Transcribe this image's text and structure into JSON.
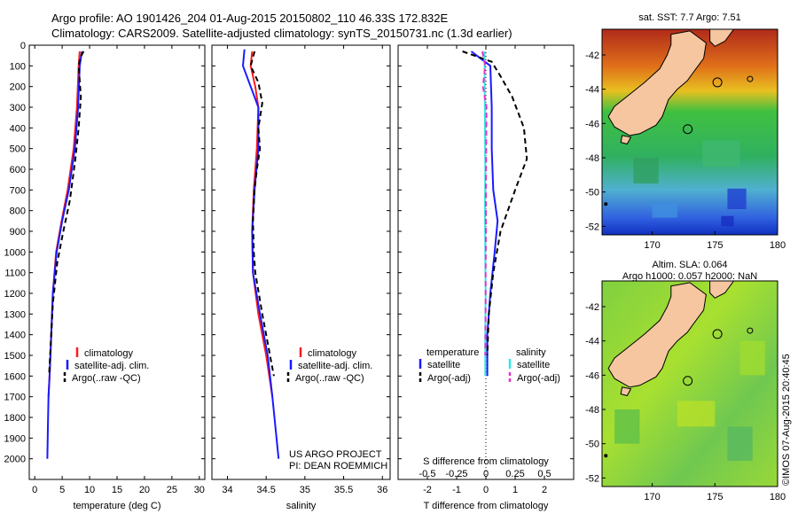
{
  "header": {
    "line1": "Argo profile: AO 1901426_204 01-Aug-2015 20150802_110 46.33S 172.832E",
    "line2": "Climatology: CARS2009. Satellite-adjusted climatology: synTS_20150731.nc (1.3d earlier)"
  },
  "credits": {
    "project": "US ARGO PROJECT",
    "pi": "PI: DEAN ROEMMICH",
    "side": "©IMOS 07-Aug-2015 20:40:45"
  },
  "colors": {
    "climatology": "#ff1a1a",
    "satellite": "#1a1aff",
    "argo": "#000000",
    "sal_satellite": "#33e6e6",
    "sal_argo": "#e633cc"
  },
  "chart_data": [
    {
      "type": "line",
      "xlabel": "temperature (deg C)",
      "ylabel": "",
      "xlim": [
        -1,
        31
      ],
      "ylim": [
        2100,
        0
      ],
      "xticks": [
        "0",
        "5",
        "10",
        "15",
        "20",
        "25",
        "30"
      ],
      "yticks": [
        "0",
        "100",
        "200",
        "300",
        "400",
        "500",
        "600",
        "700",
        "800",
        "900",
        "1000",
        "1100",
        "1200",
        "1300",
        "1400",
        "1500",
        "1600",
        "1700",
        "1800",
        "1900",
        "2000"
      ],
      "legend": {
        "position": "lower-right",
        "entries": [
          "climatology",
          "satellite-adj. clim.",
          "Argo(..raw -QC)"
        ]
      },
      "series": [
        {
          "name": "climatology",
          "color": "climatology",
          "dash": "",
          "points": [
            [
              8.2,
              30
            ],
            [
              8.0,
              100
            ],
            [
              7.7,
              300
            ],
            [
              7.1,
              500
            ],
            [
              6.0,
              700
            ],
            [
              4.9,
              850
            ],
            [
              3.9,
              1000
            ],
            [
              3.3,
              1200
            ],
            [
              3.0,
              1400
            ],
            [
              2.7,
              1600
            ],
            [
              2.5,
              1700
            ]
          ]
        },
        {
          "name": "satellite-adj. clim.",
          "color": "satellite",
          "dash": "",
          "points": [
            [
              8.6,
              30
            ],
            [
              8.2,
              100
            ],
            [
              7.9,
              300
            ],
            [
              7.3,
              500
            ],
            [
              6.2,
              700
            ],
            [
              5.0,
              850
            ],
            [
              4.0,
              1000
            ],
            [
              3.3,
              1200
            ],
            [
              3.0,
              1400
            ],
            [
              2.7,
              1600
            ],
            [
              2.5,
              1700
            ],
            [
              2.4,
              1850
            ],
            [
              2.3,
              2000
            ]
          ]
        },
        {
          "name": "Argo(..raw -QC)",
          "color": "argo",
          "dash": "6,4",
          "points": [
            [
              8.9,
              30
            ],
            [
              8.3,
              60
            ],
            [
              8.0,
              100
            ],
            [
              8.4,
              250
            ],
            [
              8.0,
              400
            ],
            [
              7.4,
              550
            ],
            [
              6.4,
              750
            ],
            [
              5.2,
              900
            ],
            [
              4.1,
              1050
            ],
            [
              3.3,
              1250
            ],
            [
              3.0,
              1400
            ],
            [
              2.6,
              1600
            ]
          ]
        }
      ]
    },
    {
      "type": "line",
      "xlabel": "salinity",
      "ylabel": "",
      "xlim": [
        33.8,
        36.1
      ],
      "ylim": [
        2100,
        0
      ],
      "xticks": [
        "34",
        "34.5",
        "35",
        "35.5",
        "36"
      ],
      "legend": {
        "position": "lower-right",
        "entries": [
          "climatology",
          "satellite-adj. clim.",
          "Argo(..raw -QC)"
        ]
      },
      "series": [
        {
          "name": "climatology",
          "color": "climatology",
          "dash": "",
          "points": [
            [
              34.32,
              30
            ],
            [
              34.3,
              100
            ],
            [
              34.36,
              200
            ],
            [
              34.4,
              300
            ],
            [
              34.38,
              500
            ],
            [
              34.34,
              700
            ],
            [
              34.32,
              900
            ],
            [
              34.33,
              1100
            ],
            [
              34.4,
              1300
            ],
            [
              34.5,
              1500
            ],
            [
              34.58,
              1700
            ]
          ]
        },
        {
          "name": "satellite-adj. clim.",
          "color": "satellite",
          "dash": "",
          "points": [
            [
              34.22,
              20
            ],
            [
              34.2,
              100
            ],
            [
              34.3,
              200
            ],
            [
              34.4,
              300
            ],
            [
              34.4,
              500
            ],
            [
              34.35,
              700
            ],
            [
              34.32,
              900
            ],
            [
              34.33,
              1100
            ],
            [
              34.42,
              1300
            ],
            [
              34.52,
              1500
            ],
            [
              34.58,
              1700
            ],
            [
              34.62,
              1850
            ],
            [
              34.66,
              2000
            ]
          ]
        },
        {
          "name": "Argo(..raw -QC)",
          "color": "argo",
          "dash": "6,4",
          "points": [
            [
              34.35,
              30
            ],
            [
              34.3,
              100
            ],
            [
              34.4,
              180
            ],
            [
              34.45,
              280
            ],
            [
              34.4,
              400
            ],
            [
              34.42,
              500
            ],
            [
              34.38,
              600
            ],
            [
              34.35,
              700
            ],
            [
              34.33,
              850
            ],
            [
              34.34,
              1000
            ],
            [
              34.36,
              1100
            ],
            [
              34.45,
              1300
            ],
            [
              34.55,
              1500
            ],
            [
              34.6,
              1600
            ]
          ]
        }
      ]
    },
    {
      "type": "line",
      "xlabel": "T difference from climatology",
      "x2label": "S difference from climatology",
      "xlim": [
        -3,
        3
      ],
      "x2lim": [
        -0.75,
        0.75
      ],
      "ylim": [
        2100,
        0
      ],
      "xticks": [
        "-2",
        "-1",
        "0",
        "1",
        "2"
      ],
      "x2ticks": [
        "-0.5",
        "-0.25",
        "0",
        "0.25",
        "0.5"
      ],
      "legend": {
        "position": "lower",
        "groups": [
          {
            "title": "temperature",
            "entries": [
              "satellite",
              "Argo(-adj)"
            ]
          },
          {
            "title": "salinity",
            "entries": [
              "satellite",
              "Argo(-adj)"
            ]
          }
        ]
      },
      "series": [
        {
          "name": "temperature satellite",
          "color": "satellite",
          "dash": "",
          "points": [
            [
              -0.5,
              30
            ],
            [
              0.15,
              100
            ],
            [
              0.2,
              300
            ],
            [
              0.2,
              500
            ],
            [
              0.25,
              700
            ],
            [
              0.4,
              850
            ],
            [
              0.3,
              1000
            ],
            [
              0.15,
              1200
            ],
            [
              0.05,
              1400
            ],
            [
              0.05,
              1600
            ]
          ]
        },
        {
          "name": "temperature Argo(-adj)",
          "color": "argo",
          "dash": "6,4",
          "points": [
            [
              -0.8,
              30
            ],
            [
              0.2,
              80
            ],
            [
              0.5,
              150
            ],
            [
              0.9,
              250
            ],
            [
              1.3,
              400
            ],
            [
              1.4,
              550
            ],
            [
              1.0,
              700
            ],
            [
              0.5,
              900
            ],
            [
              0.25,
              1100
            ],
            [
              0.1,
              1300
            ],
            [
              0.05,
              1500
            ]
          ]
        },
        {
          "name": "salinity satellite",
          "color": "sal_satellite",
          "dash": "",
          "points": [
            [
              -0.05,
              30
            ],
            [
              -0.04,
              200
            ],
            [
              -0.03,
              400
            ],
            [
              -0.02,
              600
            ],
            [
              -0.03,
              800
            ],
            [
              -0.02,
              1000
            ],
            [
              -0.01,
              1200
            ],
            [
              -0.02,
              1400
            ],
            [
              -0.02,
              1600
            ]
          ]
        },
        {
          "name": "salinity Argo(-adj)",
          "color": "sal_argo",
          "dash": "6,4",
          "points": [
            [
              -0.12,
              30
            ],
            [
              -0.02,
              100
            ],
            [
              -0.1,
              200
            ],
            [
              0.02,
              300
            ],
            [
              0.01,
              500
            ],
            [
              0.0,
              700
            ],
            [
              0.0,
              900
            ],
            [
              -0.01,
              1100
            ],
            [
              -0.01,
              1300
            ],
            [
              -0.02,
              1500
            ]
          ]
        }
      ]
    }
  ],
  "maps": [
    {
      "title": "sat. SST: 7.7 Argo: 7.51",
      "subtitle": "",
      "lat_ticks": [
        "-42",
        "-44",
        "-46",
        "-48",
        "-50",
        "-52"
      ],
      "lon_ticks": [
        "170",
        "175",
        "180"
      ],
      "lonlim": [
        166,
        180
      ],
      "latlim": [
        -52.5,
        -40.5
      ],
      "float_position": [
        172.832,
        -46.33
      ]
    },
    {
      "title": "Altim. SLA: 0.064",
      "subtitle": "Argo h1000: 0.057 h2000: NaN",
      "lat_ticks": [
        "-42",
        "-44",
        "-46",
        "-48",
        "-50",
        "-52"
      ],
      "lon_ticks": [
        "170",
        "175",
        "180"
      ],
      "lonlim": [
        166,
        180
      ],
      "latlim": [
        -52.5,
        -40.5
      ],
      "float_position": [
        172.832,
        -46.33
      ]
    }
  ]
}
